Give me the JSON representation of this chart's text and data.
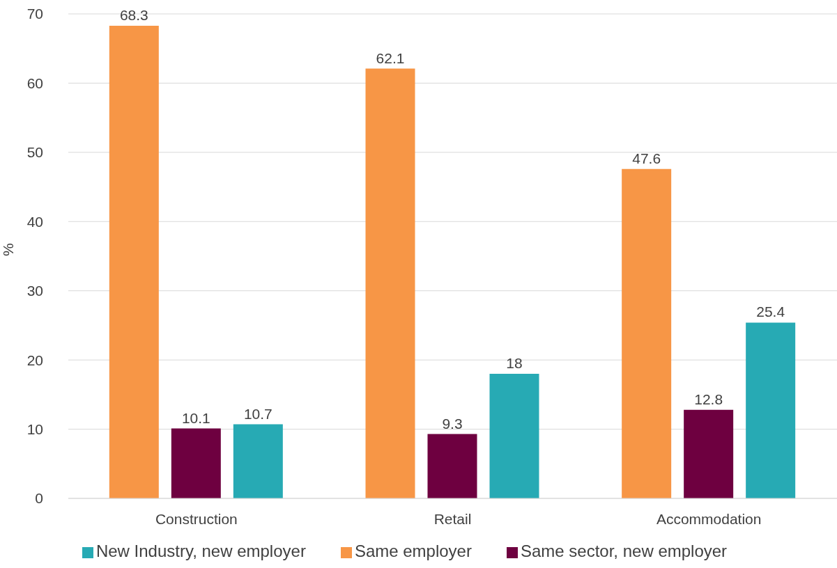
{
  "chart_data": {
    "type": "bar",
    "ylabel": "%",
    "categories": [
      "Construction",
      "Retail",
      "Accommodation"
    ],
    "series": [
      {
        "name": "Same employer",
        "color": "#f79646",
        "values": [
          68.3,
          62.1,
          47.6
        ]
      },
      {
        "name": "Same sector, new employer",
        "color": "#6e0040",
        "values": [
          10.1,
          9.3,
          12.8
        ]
      },
      {
        "name": "New Industry, new employer",
        "color": "#27aab4",
        "values": [
          10.7,
          18,
          25.4
        ]
      }
    ],
    "ylim": [
      0,
      70
    ],
    "yticks": [
      0,
      10,
      20,
      30,
      40,
      50,
      60,
      70
    ],
    "grid": "y",
    "legend": "bottom",
    "data_labels": true
  }
}
